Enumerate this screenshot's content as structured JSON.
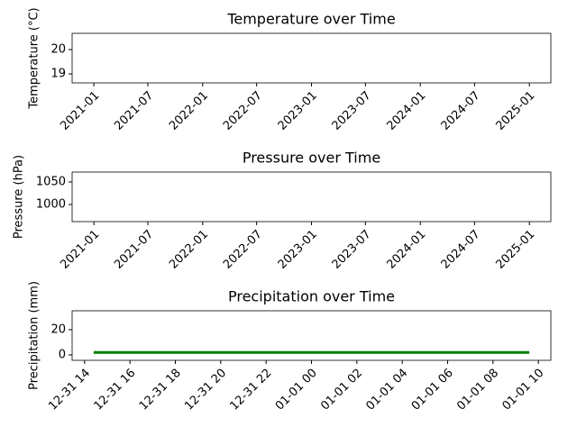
{
  "chart_data": [
    {
      "type": "line",
      "title": "Temperature over Time",
      "y_label": "Temperature (°C)",
      "xlim": [
        "2020-10-20",
        "2025-03-14"
      ],
      "xticks": [
        "2021-01",
        "2021-07",
        "2022-01",
        "2022-07",
        "2023-01",
        "2023-07",
        "2024-01",
        "2024-07",
        "2025-01"
      ],
      "ylim": [
        18.63,
        20.67
      ],
      "yticks": [
        19,
        20
      ]
    },
    {
      "type": "line",
      "title": "Pressure over Time",
      "y_label": "Pressure (hPa)",
      "xlim": [
        "2020-10-20",
        "2025-03-14"
      ],
      "xticks": [
        "2021-01",
        "2021-07",
        "2022-01",
        "2022-07",
        "2023-01",
        "2023-07",
        "2024-01",
        "2024-07",
        "2025-01"
      ],
      "ylim": [
        962,
        1072
      ],
      "yticks": [
        1000,
        1050
      ]
    },
    {
      "type": "line",
      "title": "Precipitation over Time",
      "y_label": "Precipitation (mm)",
      "xlim": [
        "12-31 13:27",
        "01-01 10:33"
      ],
      "xticks": [
        "12-31 14",
        "12-31 16",
        "12-31 18",
        "12-31 20",
        "12-31 22",
        "01-01 00",
        "01-01 02",
        "01-01 04",
        "01-01 06",
        "01-01 08",
        "01-01 10"
      ],
      "ylim": [
        -4.3,
        35
      ],
      "yticks": [
        0,
        20
      ],
      "x": [
        "12-31 14:24",
        "01-01 09:36"
      ],
      "series": [
        {
          "color": "#008000",
          "values": [
            2,
            2
          ]
        }
      ]
    }
  ]
}
